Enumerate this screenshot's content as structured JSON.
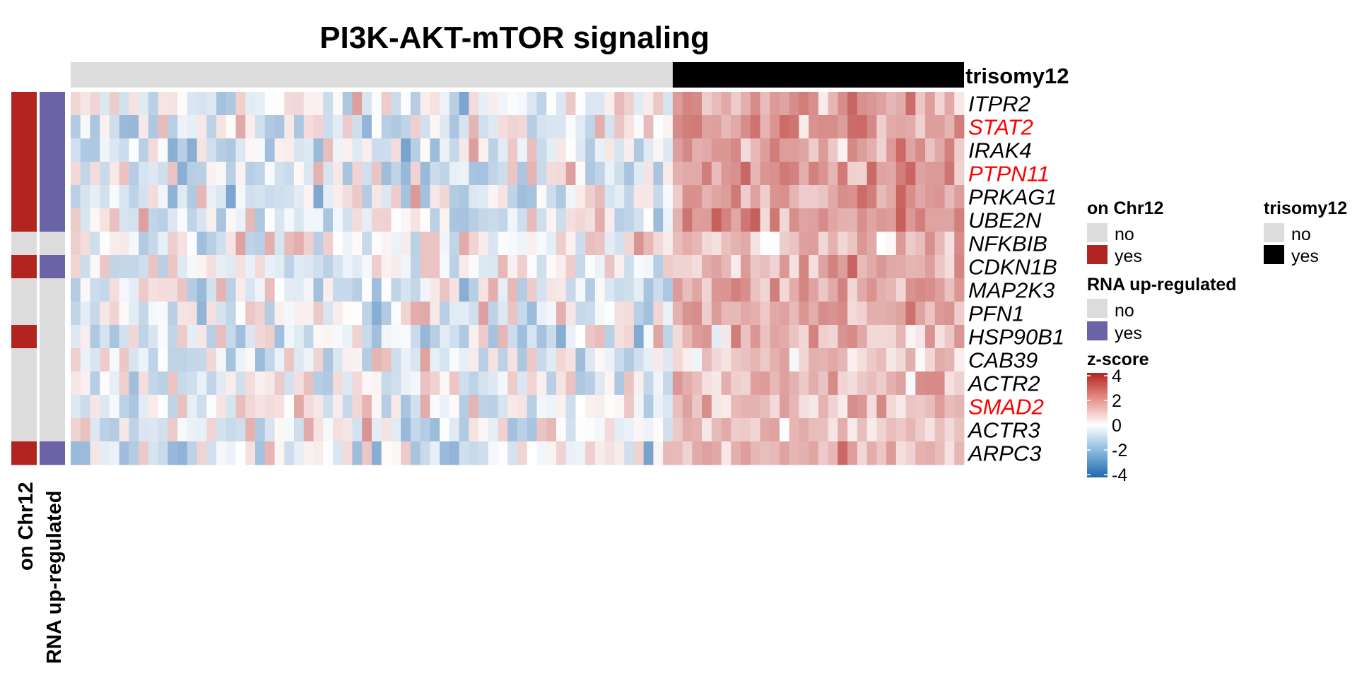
{
  "chart_data": {
    "type": "heatmap",
    "title": "PI3K-AKT-mTOR signaling",
    "rows": [
      "ITPR2",
      "STAT2",
      "IRAK4",
      "PTPN11",
      "PRKAG1",
      "UBE2N",
      "NFKBIB",
      "CDKN1B",
      "MAP2K3",
      "PFN1",
      "HSP90B1",
      "CAB39",
      "ACTR2",
      "SMAD2",
      "ACTR3",
      "ARPC3"
    ],
    "highlighted_rows": [
      "STAT2",
      "PTPN11",
      "SMAD2"
    ],
    "highlight_color": "#ff0000",
    "n_samples": 92,
    "n_trisomy12_no": 62,
    "n_trisomy12_yes": 30,
    "top_annotation": {
      "name": "trisomy12"
    },
    "row_annotations": [
      {
        "name": "on Chr12",
        "values": [
          "yes",
          "yes",
          "yes",
          "yes",
          "yes",
          "yes",
          "no",
          "yes",
          "no",
          "no",
          "yes",
          "no",
          "no",
          "no",
          "no",
          "yes"
        ]
      },
      {
        "name": "RNA up-regulated",
        "values": [
          "yes",
          "yes",
          "yes",
          "yes",
          "yes",
          "yes",
          "no",
          "yes",
          "no",
          "no",
          "no",
          "no",
          "no",
          "no",
          "no",
          "yes"
        ]
      }
    ],
    "colors": {
      "no": "#dcdcdc",
      "chr12_yes": "#b2241f",
      "rna_yes": "#6a63a6",
      "trisomy12_yes": "#000000",
      "high": "#b2241f",
      "mid": "#ffffff",
      "low": "#2168ad"
    },
    "zscore_range": [
      -4,
      4
    ],
    "row_means_trisomy12_no": [
      -0.2,
      -0.3,
      -0.3,
      -0.3,
      -0.3,
      -0.2,
      -0.1,
      -0.3,
      -0.2,
      -0.2,
      -0.2,
      -0.2,
      -0.2,
      -0.1,
      -0.2,
      -0.3
    ],
    "row_means_trisomy12_yes": [
      1.4,
      1.6,
      1.4,
      1.5,
      1.5,
      1.6,
      0.8,
      1.3,
      1.3,
      1.2,
      1.0,
      0.9,
      1.0,
      1.0,
      0.9,
      1.0
    ]
  },
  "legends": {
    "chr12": {
      "title": "on Chr12",
      "items": [
        {
          "label": "no"
        },
        {
          "label": "yes"
        }
      ]
    },
    "trisomy12": {
      "title": "trisomy12",
      "items": [
        {
          "label": "no"
        },
        {
          "label": "yes"
        }
      ]
    },
    "rna": {
      "title": "RNA up-regulated",
      "items": [
        {
          "label": "no"
        },
        {
          "label": "yes"
        }
      ]
    },
    "zscore": {
      "title": "z-score",
      "ticks": [
        "4",
        "2",
        "0",
        "-2",
        "-4"
      ]
    }
  }
}
